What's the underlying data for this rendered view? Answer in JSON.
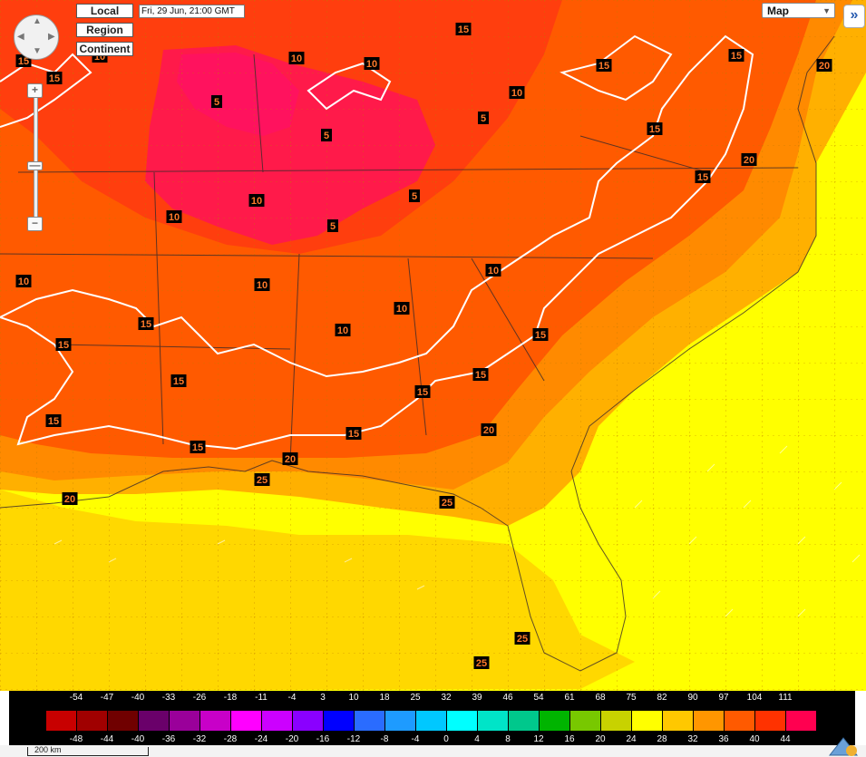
{
  "controls": {
    "local_label": "Local",
    "region_label": "Region",
    "continent_label": "Continent",
    "time_label": "Fri, 29 Jun, 21:00 GMT",
    "map_select": "Map",
    "expand_icon": "double-chevron-right-icon",
    "zoom_in": "+",
    "zoom_out": "−"
  },
  "contour_labels": [
    {
      "id": "l1",
      "text": "15"
    },
    {
      "id": "l2",
      "text": "10"
    },
    {
      "id": "l3",
      "text": "10"
    },
    {
      "id": "l4",
      "text": "15"
    },
    {
      "id": "l5",
      "text": "15"
    },
    {
      "id": "l6",
      "text": "15"
    },
    {
      "id": "l7",
      "text": "20"
    },
    {
      "id": "l8",
      "text": "5"
    },
    {
      "id": "l9",
      "text": "5"
    },
    {
      "id": "l10",
      "text": "10"
    },
    {
      "id": "l11",
      "text": "15"
    },
    {
      "id": "l12",
      "text": "15"
    },
    {
      "id": "l13",
      "text": "5"
    },
    {
      "id": "l14",
      "text": "10"
    },
    {
      "id": "l15",
      "text": "10"
    },
    {
      "id": "l16",
      "text": "5"
    },
    {
      "id": "l17",
      "text": "20"
    },
    {
      "id": "l18",
      "text": "5"
    },
    {
      "id": "l19",
      "text": "15"
    },
    {
      "id": "l20",
      "text": "10"
    },
    {
      "id": "l21",
      "text": "10"
    },
    {
      "id": "l22",
      "text": "10"
    },
    {
      "id": "l23",
      "text": "10"
    },
    {
      "id": "l24",
      "text": "10"
    },
    {
      "id": "l25",
      "text": "15"
    },
    {
      "id": "l26",
      "text": "15"
    },
    {
      "id": "l27",
      "text": "10"
    },
    {
      "id": "l28",
      "text": "15"
    },
    {
      "id": "l29",
      "text": "15"
    },
    {
      "id": "l30",
      "text": "15"
    },
    {
      "id": "l31",
      "text": "15"
    },
    {
      "id": "l32",
      "text": "15"
    },
    {
      "id": "l33",
      "text": "15"
    },
    {
      "id": "l34",
      "text": "20"
    },
    {
      "id": "l35",
      "text": "20"
    },
    {
      "id": "l36",
      "text": "25"
    },
    {
      "id": "l37",
      "text": "20"
    },
    {
      "id": "l38",
      "text": "25"
    },
    {
      "id": "l39",
      "text": "25"
    },
    {
      "id": "l40",
      "text": "25"
    },
    {
      "id": "l41",
      "text": "15"
    }
  ],
  "legend": {
    "top_values": [
      "-54",
      "-47",
      "-40",
      "-33",
      "-26",
      "-18",
      "-11",
      "-4",
      "3",
      "10",
      "18",
      "25",
      "32",
      "39",
      "46",
      "54",
      "61",
      "68",
      "75",
      "82",
      "90",
      "97",
      "104",
      "111"
    ],
    "bottom_values": [
      "-48",
      "-44",
      "-40",
      "-36",
      "-32",
      "-28",
      "-24",
      "-20",
      "-16",
      "-12",
      "-8",
      "-4",
      "0",
      "4",
      "8",
      "12",
      "16",
      "20",
      "24",
      "28",
      "32",
      "36",
      "40",
      "44"
    ],
    "colors": [
      "#c80000",
      "#a00000",
      "#700000",
      "#6a006a",
      "#9a009a",
      "#c800c8",
      "#ff00ff",
      "#cc00ff",
      "#8a00ff",
      "#0000ff",
      "#2a6cff",
      "#1e9bff",
      "#00c8ff",
      "#00ffff",
      "#00e4c8",
      "#00c88c",
      "#00b400",
      "#78c800",
      "#c8d200",
      "#ffff00",
      "#ffc800",
      "#ff9600",
      "#ff5a00",
      "#ff3200",
      "#ff0050"
    ]
  },
  "scale": {
    "label": "200 km"
  }
}
